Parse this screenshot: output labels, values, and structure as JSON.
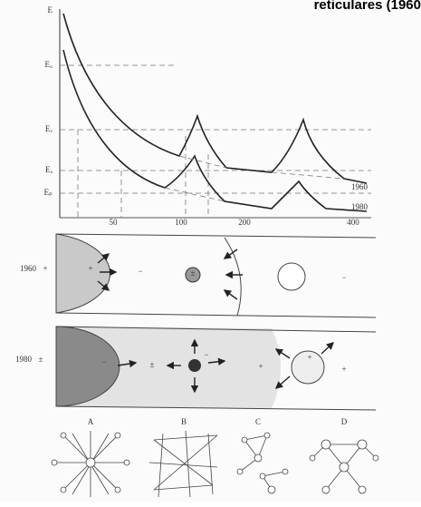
{
  "header": {
    "title": "reticulares (1960"
  },
  "graph": {
    "y_labels": [
      "E",
      "Eᵤ",
      "Eᵥ",
      "Eₐ",
      "Eₚ"
    ],
    "x_labels": [
      "50",
      "100",
      "200",
      "400"
    ],
    "curve_labels": [
      "1960",
      "1980"
    ]
  },
  "panel_1960": {
    "label": "1960",
    "signs": [
      "+",
      "+",
      "−",
      "±",
      "−"
    ]
  },
  "panel_1980": {
    "label": "1980",
    "signs": [
      "±",
      "−",
      "±",
      "−",
      "+",
      "+",
      "+"
    ]
  },
  "networks": {
    "labels": [
      "A",
      "B",
      "C",
      "D"
    ]
  }
}
